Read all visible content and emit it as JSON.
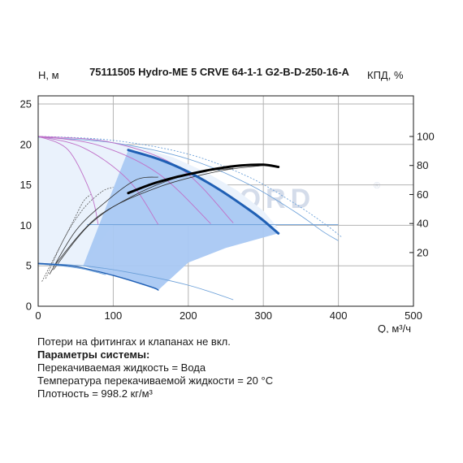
{
  "chart_data": {
    "type": "line",
    "title": "75111505 Hydro-ME 5 CRVE 64-1-1 G2-B-D-250-16-A",
    "ylabel": "H, м",
    "y2label": "КПД, %",
    "xlabel": "Q, м³/ч",
    "xlim": [
      0,
      500
    ],
    "ylim": [
      0,
      26
    ],
    "y2lim": [
      -17,
      128
    ],
    "xticks": [
      "0",
      "100",
      "200",
      "300",
      "400",
      "500"
    ],
    "yticks": [
      "0",
      "5",
      "10",
      "15",
      "20",
      "25"
    ],
    "y2ticks": [
      "20",
      "40",
      "60",
      "80",
      "100"
    ],
    "grid": true,
    "watermark": "VANDJORD",
    "watermark_symbol": "®",
    "colors": {
      "operating_area": "#a9c8f3",
      "low_speed_area": "#eaf2fc",
      "max_curve": "#1f5fb4",
      "efficiency_curve": "#000000",
      "thin_blue": "#6a9fd8",
      "thin_purple": "#c070c8",
      "grid": "#b3b3b3"
    },
    "series": [
      {
        "key": "max",
        "x": [
          120,
          160,
          200,
          240,
          280,
          300,
          320
        ],
        "y": [
          19.3,
          18.2,
          16.6,
          14.5,
          12.0,
          10.6,
          9.0
        ]
      },
      {
        "key": "efficiency",
        "axis": "right",
        "x": [
          120,
          150,
          180,
          210,
          240,
          270,
          300,
          320
        ],
        "y": [
          61,
          67,
          71.5,
          75,
          78,
          80,
          80.5,
          79
        ]
      },
      {
        "key": "min",
        "x": [
          0,
          50,
          100,
          150,
          160
        ],
        "y": [
          5.3,
          4.9,
          3.8,
          2.4,
          2.0
        ]
      }
    ],
    "operating_area": {
      "x": [
        120,
        160,
        200,
        240,
        280,
        300,
        320,
        250,
        200,
        160,
        60,
        120
      ],
      "y": [
        19.3,
        18.2,
        16.6,
        14.5,
        12.0,
        10.6,
        9.0,
        7.2,
        5.4,
        2.0,
        5.0,
        19.3
      ]
    },
    "low_speed_area": {
      "x": [
        0,
        80,
        130,
        180,
        225,
        265,
        300,
        320,
        300,
        200,
        100,
        60,
        0,
        0
      ],
      "y": [
        21.0,
        20.7,
        19.8,
        18.4,
        16.5,
        14.3,
        11.8,
        9.6,
        10.1,
        10.1,
        10.1,
        5.0,
        5.3,
        21.0
      ]
    },
    "thin_curves": {
      "blue_dotted_outer": {
        "x": [
          0,
          100,
          200,
          280,
          340,
          380,
          405
        ],
        "y": [
          21.0,
          20.5,
          18.8,
          16.0,
          12.8,
          10.3,
          8.5
        ]
      },
      "blue_thin_outer": {
        "x": [
          0,
          100,
          200,
          280,
          340,
          380,
          400
        ],
        "y": [
          20.9,
          20.2,
          18.2,
          15.1,
          11.8,
          9.2,
          8.1
        ]
      },
      "flat_10": {
        "x": [
          65,
          200,
          300,
          400
        ],
        "y": [
          10.1,
          10.1,
          10.1,
          10.1
        ]
      },
      "purple_1": {
        "x": [
          0,
          40,
          70,
          80
        ],
        "y": [
          21.0,
          19.3,
          14.0,
          10.1
        ]
      },
      "purple_2": {
        "x": [
          0,
          60,
          120,
          160
        ],
        "y": [
          21.0,
          19.6,
          15.6,
          10.1
        ]
      },
      "purple_3": {
        "x": [
          0,
          80,
          160,
          230
        ],
        "y": [
          21.0,
          19.9,
          16.4,
          10.2
        ]
      },
      "purple_4": {
        "x": [
          0,
          100,
          190,
          260
        ],
        "y": [
          21.0,
          20.2,
          17.0,
          10.3
        ]
      },
      "eff_curve_a": {
        "axis": "right",
        "x": [
          5,
          25,
          45,
          60,
          70
        ],
        "y": [
          0,
          20,
          40,
          55,
          60
        ]
      },
      "eff_curve_b": {
        "axis": "right",
        "x": [
          10,
          35,
          60,
          85,
          100
        ],
        "y": [
          2,
          30,
          50,
          62,
          65
        ]
      },
      "eff_curve_c": {
        "axis": "right",
        "x": [
          15,
          50,
          90,
          130,
          160
        ],
        "y": [
          5,
          35,
          55,
          70,
          72
        ]
      },
      "eff_curve_d": {
        "axis": "right",
        "x": [
          20,
          70,
          130,
          200,
          260
        ],
        "y": [
          8,
          40,
          60,
          74,
          78
        ]
      },
      "eff_curve_e": {
        "axis": "right",
        "x": [
          20,
          80,
          160,
          240,
          300
        ],
        "y": [
          10,
          45,
          65,
          76,
          80
        ]
      },
      "h_curve_a": {
        "x": [
          0,
          30,
          60,
          90
        ],
        "y": [
          5.2,
          5.0,
          4.6,
          3.9
        ]
      },
      "h_curve_b": {
        "x": [
          0,
          60,
          120,
          200,
          260
        ],
        "y": [
          5.3,
          5.0,
          4.2,
          2.6,
          0.8
        ]
      }
    }
  },
  "notes": {
    "line1": "Потери на фитингах и клапанах не вкл.",
    "line2": "Параметры системы:",
    "line3": "Перекачиваемая жидкость = Вода",
    "line4": "Температура перекачиваемой жидкости = 20 °C",
    "line5": "Плотность = 998.2 кг/м³"
  }
}
